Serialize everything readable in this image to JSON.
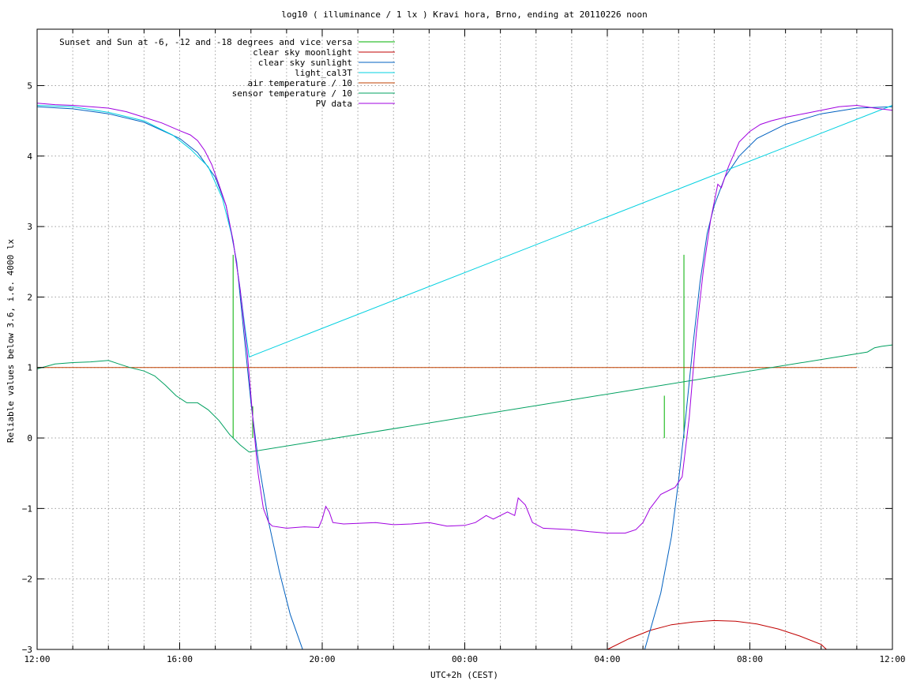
{
  "chart_data": {
    "type": "line",
    "title": "log10 ( illuminance / 1 lx ) Kravi hora, Brno, ending at 20110226 noon",
    "xlabel": "UTC+2h (CEST)",
    "ylabel": "Reliable values below 3.6, i.e. 4000 lx",
    "x_unit": "hours after 12:00",
    "xlim": [
      0,
      24
    ],
    "ylim": [
      -3,
      5.8
    ],
    "x_ticks": [
      {
        "value": 0,
        "label": "12:00"
      },
      {
        "value": 4,
        "label": "16:00"
      },
      {
        "value": 8,
        "label": "20:00"
      },
      {
        "value": 12,
        "label": "00:00"
      },
      {
        "value": 16,
        "label": "04:00"
      },
      {
        "value": 20,
        "label": "08:00"
      },
      {
        "value": 24,
        "label": "12:00"
      }
    ],
    "x_minor_step": 1,
    "y_ticks": [
      {
        "value": -3,
        "label": "−3"
      },
      {
        "value": -2,
        "label": "−2"
      },
      {
        "value": -1,
        "label": "−1"
      },
      {
        "value": 0,
        "label": "0"
      },
      {
        "value": 1,
        "label": "1"
      },
      {
        "value": 2,
        "label": "2"
      },
      {
        "value": 3,
        "label": "3"
      },
      {
        "value": 4,
        "label": "4"
      },
      {
        "value": 5,
        "label": "5"
      }
    ],
    "grid": true,
    "legend_position": "top-left",
    "series": [
      {
        "name": "Sunset and Sun at -6, -12 and -18 degrees and vice versa",
        "color": "#00b000",
        "style": "impulses",
        "points": [
          [
            5.5,
            2.6
          ],
          [
            6.05,
            0.45
          ],
          [
            6.6,
            0
          ],
          [
            7.2,
            0
          ],
          [
            16.45,
            0
          ],
          [
            17.05,
            0
          ],
          [
            17.6,
            0.6
          ],
          [
            18.15,
            2.6
          ]
        ]
      },
      {
        "name": "clear sky moonlight",
        "color": "#c00000",
        "points": [
          [
            16.0,
            -3.0
          ],
          [
            16.6,
            -2.85
          ],
          [
            17.2,
            -2.73
          ],
          [
            17.8,
            -2.65
          ],
          [
            18.4,
            -2.61
          ],
          [
            19.0,
            -2.59
          ],
          [
            19.6,
            -2.6
          ],
          [
            20.2,
            -2.64
          ],
          [
            20.8,
            -2.71
          ],
          [
            21.4,
            -2.81
          ],
          [
            22.0,
            -2.93
          ],
          [
            22.15,
            -3.0
          ]
        ]
      },
      {
        "name": "clear sky sunlight",
        "color": "#0060c0",
        "points": [
          [
            0,
            4.7
          ],
          [
            1,
            4.67
          ],
          [
            2,
            4.6
          ],
          [
            3,
            4.48
          ],
          [
            4,
            4.25
          ],
          [
            4.5,
            4.05
          ],
          [
            5.0,
            3.7
          ],
          [
            5.3,
            3.3
          ],
          [
            5.6,
            2.5
          ],
          [
            5.8,
            1.5
          ],
          [
            6.0,
            0.5
          ],
          [
            6.2,
            -0.3
          ],
          [
            6.5,
            -1.2
          ],
          [
            6.8,
            -1.9
          ],
          [
            7.1,
            -2.5
          ],
          [
            7.45,
            -3.0
          ],
          [
            17.05,
            -3.0
          ],
          [
            17.5,
            -2.2
          ],
          [
            17.8,
            -1.4
          ],
          [
            18.0,
            -0.6
          ],
          [
            18.2,
            0.3
          ],
          [
            18.4,
            1.3
          ],
          [
            18.6,
            2.2
          ],
          [
            18.8,
            2.9
          ],
          [
            19.0,
            3.3
          ],
          [
            19.3,
            3.7
          ],
          [
            19.7,
            4.0
          ],
          [
            20.2,
            4.25
          ],
          [
            21.0,
            4.45
          ],
          [
            22.0,
            4.6
          ],
          [
            23.0,
            4.68
          ],
          [
            24.0,
            4.7
          ]
        ]
      },
      {
        "name": "light_cal3T",
        "color": "#00d0e0",
        "points": [
          [
            0,
            4.72
          ],
          [
            1,
            4.7
          ],
          [
            2,
            4.62
          ],
          [
            3,
            4.5
          ],
          [
            3.8,
            4.3
          ],
          [
            4.3,
            4.1
          ],
          [
            4.8,
            3.85
          ],
          [
            5.2,
            3.4
          ],
          [
            5.5,
            2.8
          ],
          [
            5.7,
            2.1
          ],
          [
            5.85,
            1.5
          ],
          [
            5.95,
            1.15
          ],
          [
            24.0,
            4.72
          ]
        ]
      },
      {
        "name": "air temperature / 10",
        "color": "#c04000",
        "points": [
          [
            0,
            1.0
          ],
          [
            23.0,
            1.0
          ]
        ]
      },
      {
        "name": "sensor temperature / 10",
        "color": "#00a060",
        "points": [
          [
            0,
            0.98
          ],
          [
            0.5,
            1.05
          ],
          [
            1.0,
            1.07
          ],
          [
            1.5,
            1.08
          ],
          [
            2.0,
            1.1
          ],
          [
            2.3,
            1.05
          ],
          [
            2.6,
            1.0
          ],
          [
            3.0,
            0.95
          ],
          [
            3.3,
            0.88
          ],
          [
            3.6,
            0.75
          ],
          [
            3.9,
            0.6
          ],
          [
            4.2,
            0.5
          ],
          [
            4.5,
            0.5
          ],
          [
            4.8,
            0.4
          ],
          [
            5.1,
            0.25
          ],
          [
            5.4,
            0.05
          ],
          [
            5.7,
            -0.1
          ],
          [
            5.95,
            -0.2
          ],
          [
            23.3,
            1.22
          ],
          [
            23.5,
            1.28
          ],
          [
            23.7,
            1.3
          ],
          [
            24.0,
            1.32
          ]
        ]
      },
      {
        "name": "PV data",
        "color": "#a000e0",
        "points": [
          [
            0,
            4.75
          ],
          [
            0.5,
            4.73
          ],
          [
            1,
            4.72
          ],
          [
            1.5,
            4.7
          ],
          [
            2,
            4.68
          ],
          [
            2.5,
            4.63
          ],
          [
            3,
            4.55
          ],
          [
            3.5,
            4.47
          ],
          [
            4,
            4.36
          ],
          [
            4.3,
            4.3
          ],
          [
            4.5,
            4.22
          ],
          [
            4.7,
            4.08
          ],
          [
            4.9,
            3.88
          ],
          [
            5.1,
            3.6
          ],
          [
            5.3,
            3.3
          ],
          [
            5.5,
            2.8
          ],
          [
            5.7,
            2.1
          ],
          [
            5.9,
            1.2
          ],
          [
            6.05,
            0.3
          ],
          [
            6.2,
            -0.5
          ],
          [
            6.35,
            -1.0
          ],
          [
            6.5,
            -1.2
          ],
          [
            6.6,
            -1.25
          ],
          [
            7.0,
            -1.28
          ],
          [
            7.5,
            -1.26
          ],
          [
            7.9,
            -1.27
          ],
          [
            8.0,
            -1.15
          ],
          [
            8.1,
            -0.97
          ],
          [
            8.2,
            -1.05
          ],
          [
            8.3,
            -1.2
          ],
          [
            8.6,
            -1.22
          ],
          [
            9.5,
            -1.2
          ],
          [
            10.0,
            -1.23
          ],
          [
            10.5,
            -1.22
          ],
          [
            11.0,
            -1.2
          ],
          [
            11.5,
            -1.25
          ],
          [
            12.0,
            -1.24
          ],
          [
            12.3,
            -1.2
          ],
          [
            12.6,
            -1.1
          ],
          [
            12.8,
            -1.15
          ],
          [
            13.0,
            -1.1
          ],
          [
            13.2,
            -1.05
          ],
          [
            13.4,
            -1.1
          ],
          [
            13.5,
            -0.85
          ],
          [
            13.7,
            -0.95
          ],
          [
            13.9,
            -1.2
          ],
          [
            14.2,
            -1.28
          ],
          [
            15.0,
            -1.3
          ],
          [
            15.5,
            -1.33
          ],
          [
            16.0,
            -1.35
          ],
          [
            16.5,
            -1.35
          ],
          [
            16.8,
            -1.3
          ],
          [
            17.0,
            -1.2
          ],
          [
            17.2,
            -1.0
          ],
          [
            17.5,
            -0.8
          ],
          [
            17.9,
            -0.7
          ],
          [
            18.1,
            -0.55
          ],
          [
            18.3,
            0.3
          ],
          [
            18.5,
            1.5
          ],
          [
            18.7,
            2.4
          ],
          [
            18.9,
            3.1
          ],
          [
            19.1,
            3.6
          ],
          [
            19.2,
            3.55
          ],
          [
            19.4,
            3.85
          ],
          [
            19.7,
            4.2
          ],
          [
            20.0,
            4.35
          ],
          [
            20.3,
            4.45
          ],
          [
            20.6,
            4.5
          ],
          [
            21.0,
            4.55
          ],
          [
            21.5,
            4.6
          ],
          [
            22.0,
            4.65
          ],
          [
            22.5,
            4.7
          ],
          [
            23.0,
            4.72
          ],
          [
            23.5,
            4.68
          ],
          [
            24.0,
            4.65
          ]
        ]
      }
    ]
  }
}
